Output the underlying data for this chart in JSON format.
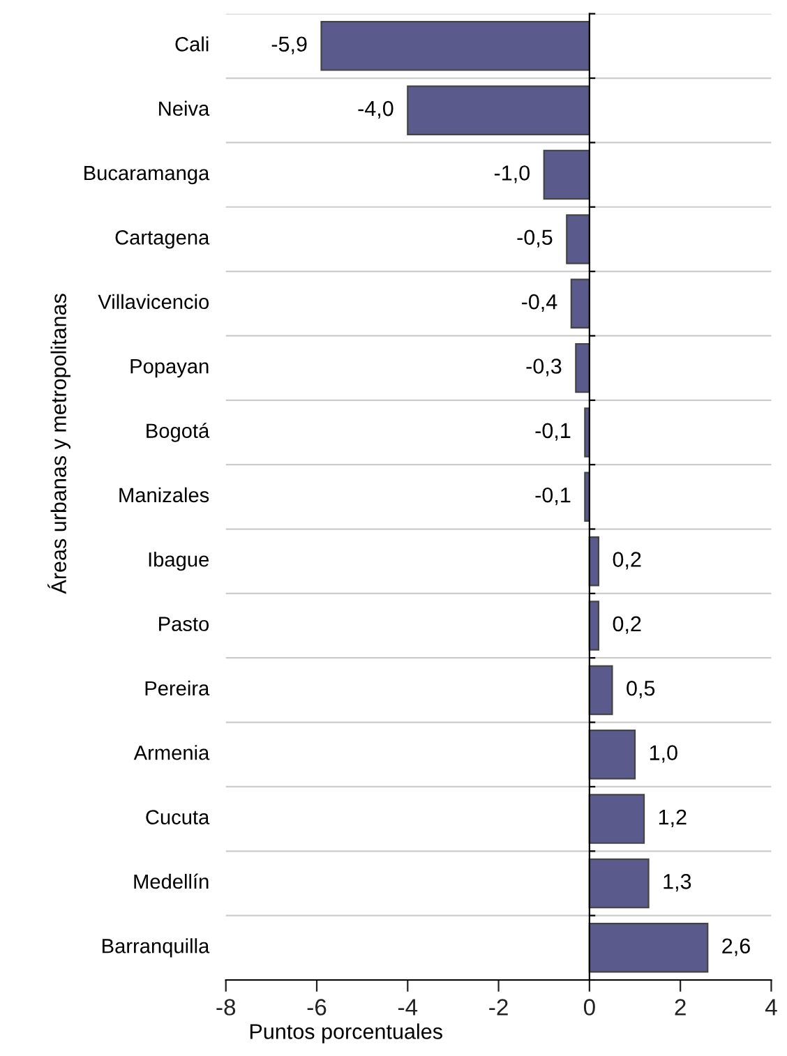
{
  "chart_data": {
    "type": "bar",
    "orientation": "horizontal",
    "xlabel": "Puntos porcentuales",
    "ylabel": "Áreas urbanas y metropolitanas",
    "categories": [
      "Cali",
      "Neiva",
      "Bucaramanga",
      "Cartagena",
      "Villavicencio",
      "Popayan",
      "Bogotá",
      "Manizales",
      "Ibague",
      "Pasto",
      "Pereira",
      "Armenia",
      "Cucuta",
      "Medellín",
      "Barranquilla"
    ],
    "values": [
      -5.9,
      -4.0,
      -1.0,
      -0.5,
      -0.4,
      -0.3,
      -0.1,
      -0.1,
      0.2,
      0.2,
      0.5,
      1.0,
      1.2,
      1.3,
      2.6
    ],
    "value_labels": [
      "-5,9",
      "-4,0",
      "-1,0",
      "-0,5",
      "-0,4",
      "-0,3",
      "-0,1",
      "-0,1",
      "0,2",
      "0,2",
      "0,5",
      "1,0",
      "1,2",
      "1,3",
      "2,6"
    ],
    "color": "#5a5a8c",
    "xlim": [
      -8,
      4
    ],
    "xticks": [
      -8,
      -6,
      -4,
      -2,
      0,
      2,
      4
    ],
    "grid": "y",
    "legend": false
  }
}
